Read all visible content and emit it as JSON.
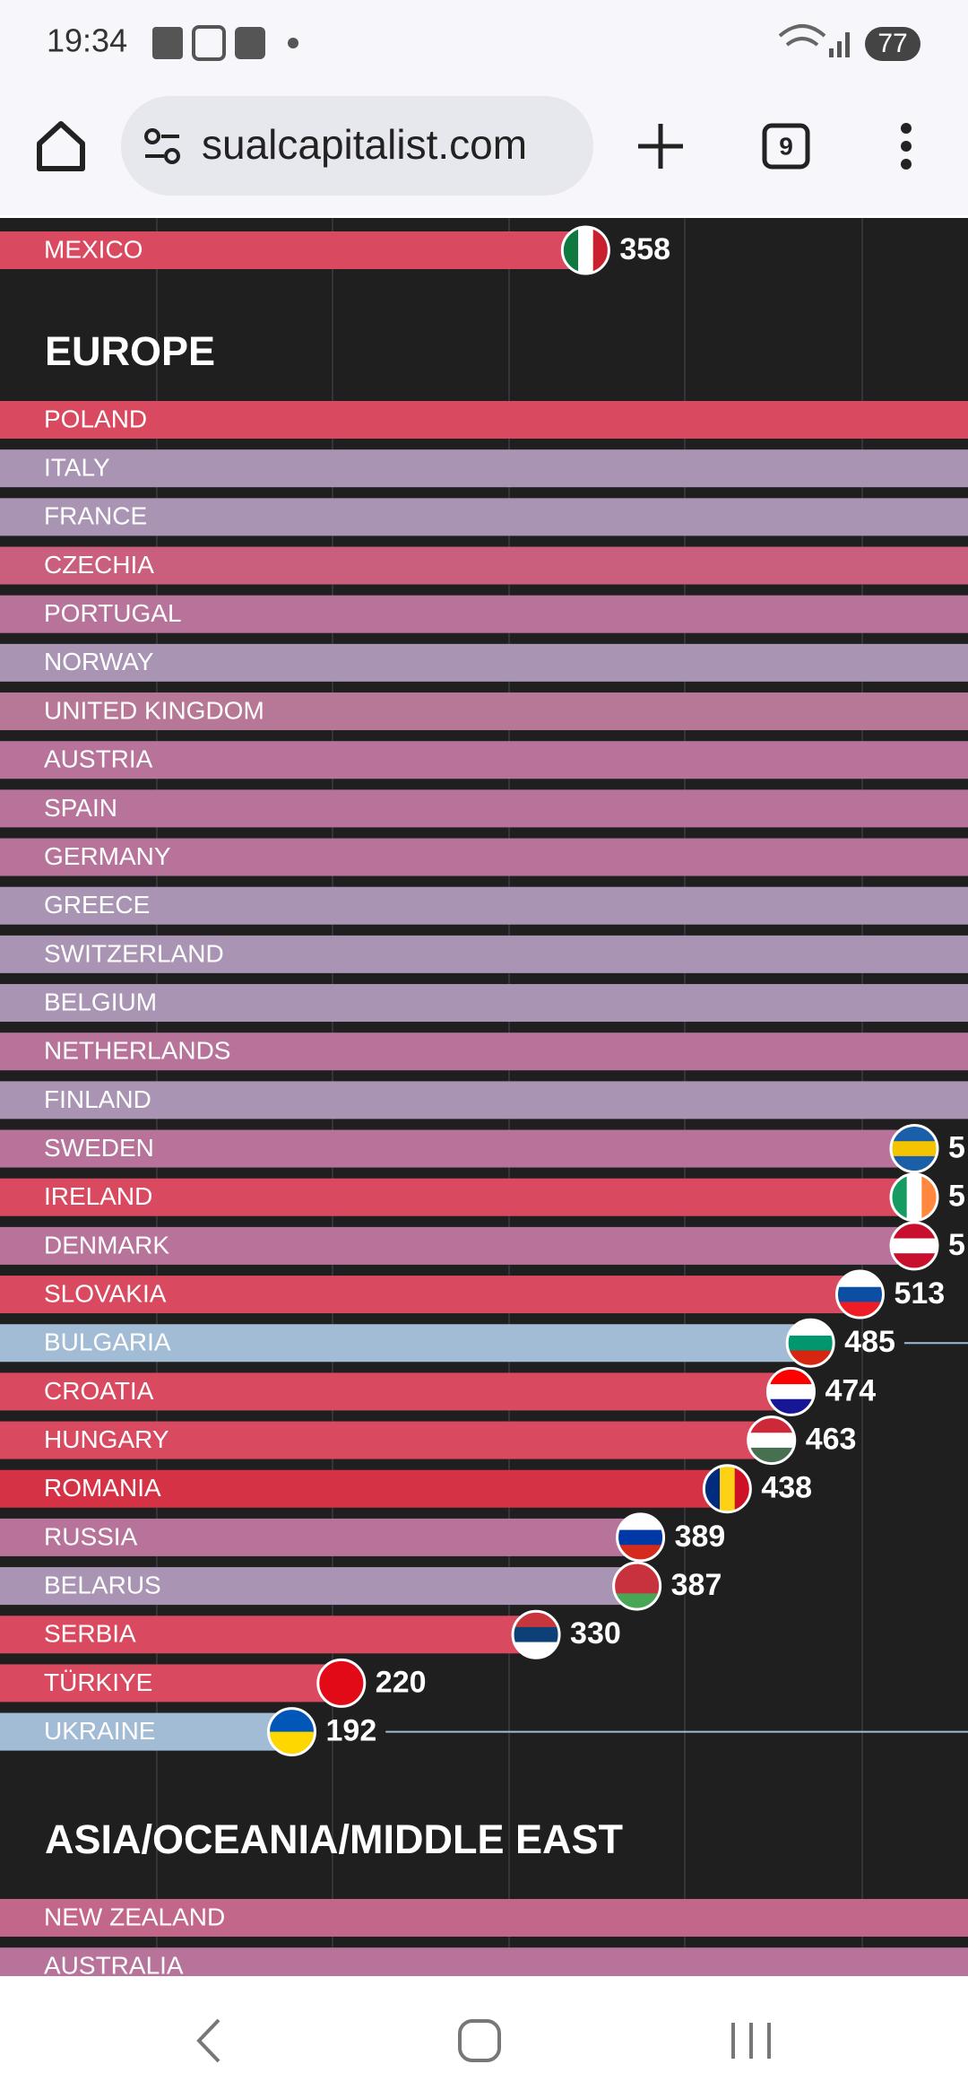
{
  "screen": {
    "status_bar": {
      "time": "19:34",
      "battery": "77"
    },
    "browser": {
      "url": "sualcapitalist.com",
      "tab_count": "9"
    },
    "chart": {
      "sections": [
        {
          "rows": [
            {
              "label": "MEXICO",
              "value": 358,
              "color": "#d9495f"
            }
          ]
        },
        {
          "title": "EUROPE",
          "rows": [
            {
              "label": "POLAND",
              "color": "#d9495f"
            },
            {
              "label": "ITALY",
              "color": "#a994b4"
            },
            {
              "label": "FRANCE",
              "color": "#a994b4"
            },
            {
              "label": "CZECHIA",
              "color": "#c95f7c"
            },
            {
              "label": "PORTUGAL",
              "color": "#b7739a"
            },
            {
              "label": "NORWAY",
              "color": "#a994b4"
            },
            {
              "label": "UNITED KINGDOM",
              "color": "#b77898"
            },
            {
              "label": "AUSTRIA",
              "color": "#b7739a"
            },
            {
              "label": "SPAIN",
              "color": "#b7739a"
            },
            {
              "label": "GERMANY",
              "color": "#b7739a"
            },
            {
              "label": "GREECE",
              "color": "#a994b4"
            },
            {
              "label": "SWITZERLAND",
              "color": "#a994b4"
            },
            {
              "label": "BELGIUM",
              "color": "#a994b4"
            },
            {
              "label": "NETHERLANDS",
              "color": "#b7739a"
            },
            {
              "label": "FINLAND",
              "color": "#a994b4"
            },
            {
              "label": "SWEDEN",
              "value_label": "5",
              "color": "#b7739a"
            },
            {
              "label": "IRELAND",
              "value_label": "5",
              "color": "#d9495f"
            },
            {
              "label": "DENMARK",
              "value_label": "5",
              "color": "#b7739a"
            },
            {
              "label": "SLOVAKIA",
              "value": 513,
              "color": "#d9495f"
            },
            {
              "label": "BULGARIA",
              "value": 485,
              "color": "#a3bcd6"
            },
            {
              "label": "CROATIA",
              "value": 474,
              "color": "#d9495f"
            },
            {
              "label": "HUNGARY",
              "value": 463,
              "color": "#d9495f"
            },
            {
              "label": "ROMANIA",
              "value": 438,
              "color": "#d63246"
            },
            {
              "label": "RUSSIA",
              "value": 389,
              "color": "#b7739a"
            },
            {
              "label": "BELARUS",
              "value": 387,
              "color": "#a994b4"
            },
            {
              "label": "SERBIA",
              "value": 330,
              "color": "#d9495f"
            },
            {
              "label": "TÜRKIYE",
              "value": 220,
              "color": "#d9495f"
            },
            {
              "label": "UKRAINE",
              "value": 192,
              "color": "#a3bcd6"
            }
          ]
        },
        {
          "title": "ASIA/OCEANIA/MIDDLE EAST",
          "rows": [
            {
              "label": "NEW ZEALAND",
              "color": "#c2678a"
            },
            {
              "label": "AUSTRALIA",
              "color": "#b7739a"
            }
          ]
        }
      ]
    }
  }
}
